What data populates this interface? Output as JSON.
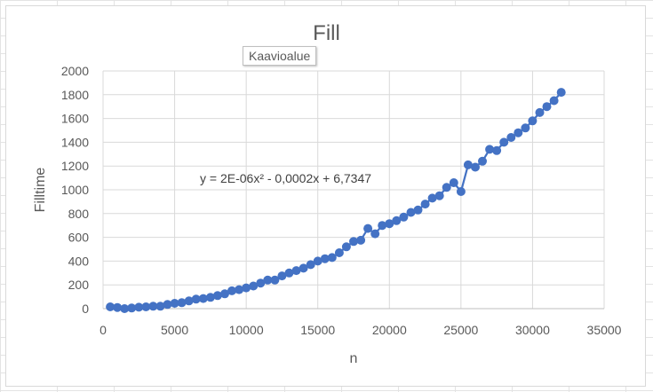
{
  "tooltip": "Kaavioalue",
  "chart_data": {
    "type": "scatter",
    "title": "Fill",
    "xlabel": "n",
    "ylabel": "Filltime",
    "xlim": [
      0,
      35000
    ],
    "ylim": [
      0,
      2000
    ],
    "x_ticks": [
      "0",
      "5000",
      "10000",
      "15000",
      "20000",
      "25000",
      "30000",
      "35000"
    ],
    "y_ticks": [
      "0",
      "200",
      "400",
      "600",
      "800",
      "1000",
      "1200",
      "1400",
      "1600",
      "1800",
      "2000"
    ],
    "grid": true,
    "trendline_label": "y = 2E-06x² - 0,0002x + 6,7347",
    "series": [
      {
        "color": "#4472c4",
        "x": [
          500,
          1000,
          1500,
          2000,
          2500,
          3000,
          3500,
          4000,
          4500,
          5000,
          5500,
          6000,
          6500,
          7000,
          7500,
          8000,
          8500,
          9000,
          9500,
          10000,
          10500,
          11000,
          11500,
          12000,
          12500,
          13000,
          13500,
          14000,
          14500,
          15000,
          15500,
          16000,
          16500,
          17000,
          17500,
          18000,
          18500,
          19000,
          19500,
          20000,
          20500,
          21000,
          21500,
          22000,
          22500,
          23000,
          23500,
          24000,
          24500,
          25000,
          25500,
          26000,
          26500,
          27000,
          27500,
          28000,
          28500,
          29000,
          29500,
          30000,
          30500,
          31000,
          31500,
          32000
        ],
        "y": [
          15,
          10,
          0,
          5,
          12,
          15,
          20,
          20,
          35,
          45,
          50,
          65,
          80,
          85,
          95,
          110,
          125,
          150,
          160,
          175,
          190,
          215,
          240,
          240,
          275,
          300,
          320,
          340,
          370,
          400,
          420,
          430,
          470,
          520,
          565,
          575,
          675,
          630,
          700,
          715,
          740,
          770,
          810,
          830,
          880,
          930,
          950,
          1020,
          1060,
          985,
          1210,
          1190,
          1240,
          1340,
          1330,
          1400,
          1440,
          1480,
          1520,
          1580,
          1650,
          1700,
          1750,
          1820
        ]
      }
    ]
  }
}
